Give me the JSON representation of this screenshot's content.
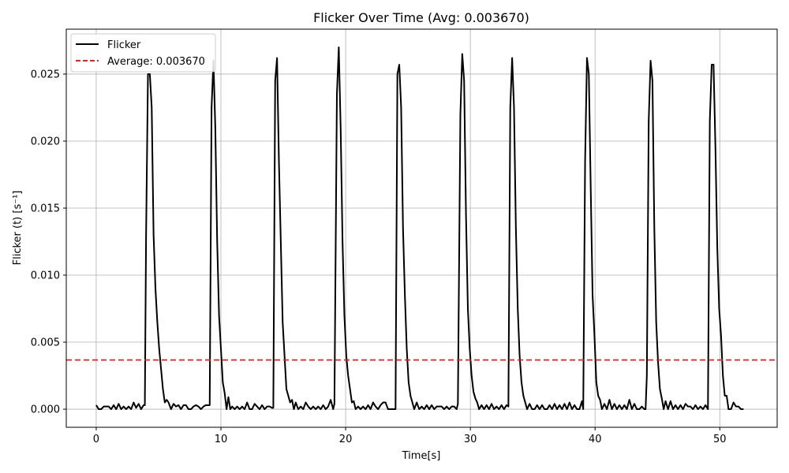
{
  "chart_data": {
    "type": "line",
    "title": "Flicker Over Time (Avg: 0.003670)",
    "xlabel": "Time[s]",
    "ylabel": "Flicker (t) [s⁻¹]",
    "xlim": [
      -2.4,
      54.6
    ],
    "ylim": [
      -0.00135,
      0.02835
    ],
    "xticks": [
      0,
      10,
      20,
      30,
      40,
      50
    ],
    "xtick_labels": [
      "0",
      "10",
      "20",
      "30",
      "40",
      "50"
    ],
    "yticks": [
      0.0,
      0.005,
      0.01,
      0.015,
      0.02,
      0.025
    ],
    "ytick_labels": [
      "0.000",
      "0.005",
      "0.010",
      "0.015",
      "0.020",
      "0.025"
    ],
    "grid": true,
    "legend_position": "top-left",
    "series": [
      {
        "name": "Flicker",
        "color": "#000000",
        "style": "solid",
        "points": [
          [
            0.0,
            0.0003
          ],
          [
            0.2,
            0.0
          ],
          [
            0.4,
            0.0
          ],
          [
            0.6,
            0.0002
          ],
          [
            0.8,
            0.0002
          ],
          [
            1.0,
            0.0002
          ],
          [
            1.2,
            0.0
          ],
          [
            1.4,
            0.0003
          ],
          [
            1.6,
            0.0
          ],
          [
            1.8,
            0.0004
          ],
          [
            2.0,
            0.0
          ],
          [
            2.2,
            0.0002
          ],
          [
            2.4,
            0.0
          ],
          [
            2.6,
            0.0002
          ],
          [
            2.8,
            0.0
          ],
          [
            3.0,
            0.0005
          ],
          [
            3.2,
            0.0001
          ],
          [
            3.4,
            0.0004
          ],
          [
            3.6,
            0.0
          ],
          [
            3.8,
            0.0003
          ],
          [
            3.9,
            0.0003
          ],
          [
            4.0,
            0.013
          ],
          [
            4.15,
            0.025
          ],
          [
            4.3,
            0.025
          ],
          [
            4.45,
            0.0225
          ],
          [
            4.6,
            0.013
          ],
          [
            4.75,
            0.009
          ],
          [
            4.9,
            0.0065
          ],
          [
            5.05,
            0.0045
          ],
          [
            5.2,
            0.003
          ],
          [
            5.35,
            0.0015
          ],
          [
            5.5,
            0.0005
          ],
          [
            5.65,
            0.0007
          ],
          [
            5.8,
            0.0005
          ],
          [
            6.0,
            0.0
          ],
          [
            6.2,
            0.0004
          ],
          [
            6.4,
            0.0002
          ],
          [
            6.6,
            0.0003
          ],
          [
            6.8,
            0.0
          ],
          [
            7.0,
            0.0003
          ],
          [
            7.2,
            0.0003
          ],
          [
            7.4,
            0.0
          ],
          [
            7.6,
            0.0
          ],
          [
            7.8,
            0.0002
          ],
          [
            8.0,
            0.0003
          ],
          [
            8.2,
            0.0002
          ],
          [
            8.4,
            0.0
          ],
          [
            8.6,
            0.0002
          ],
          [
            8.8,
            0.0003
          ],
          [
            9.0,
            0.0003
          ],
          [
            9.1,
            0.0003
          ],
          [
            9.25,
            0.0225
          ],
          [
            9.4,
            0.026
          ],
          [
            9.55,
            0.021
          ],
          [
            9.7,
            0.0125
          ],
          [
            9.85,
            0.007
          ],
          [
            10.0,
            0.0045
          ],
          [
            10.15,
            0.002
          ],
          [
            10.3,
            0.0012
          ],
          [
            10.45,
            0.0
          ],
          [
            10.6,
            0.0009
          ],
          [
            10.75,
            0.0
          ],
          [
            10.9,
            0.0002
          ],
          [
            11.1,
            0.0
          ],
          [
            11.3,
            0.0002
          ],
          [
            11.5,
            0.0
          ],
          [
            11.7,
            0.0002
          ],
          [
            11.9,
            0.0
          ],
          [
            12.1,
            0.0005
          ],
          [
            12.3,
            0.0
          ],
          [
            12.5,
            0.0
          ],
          [
            12.7,
            0.0004
          ],
          [
            12.9,
            0.0002
          ],
          [
            13.1,
            0.0
          ],
          [
            13.3,
            0.0003
          ],
          [
            13.5,
            0.0
          ],
          [
            13.7,
            0.0002
          ],
          [
            13.9,
            0.0002
          ],
          [
            14.1,
            0.0001
          ],
          [
            14.2,
            0.0001
          ],
          [
            14.35,
            0.0245
          ],
          [
            14.5,
            0.0262
          ],
          [
            14.65,
            0.0185
          ],
          [
            14.8,
            0.0125
          ],
          [
            14.95,
            0.0065
          ],
          [
            15.1,
            0.004
          ],
          [
            15.25,
            0.0015
          ],
          [
            15.4,
            0.001
          ],
          [
            15.55,
            0.0005
          ],
          [
            15.7,
            0.0007
          ],
          [
            15.85,
            0.0
          ],
          [
            16.0,
            0.0005
          ],
          [
            16.2,
            0.0
          ],
          [
            16.4,
            0.0002
          ],
          [
            16.6,
            0.0
          ],
          [
            16.8,
            0.0005
          ],
          [
            17.0,
            0.0002
          ],
          [
            17.2,
            0.0
          ],
          [
            17.4,
            0.0002
          ],
          [
            17.6,
            0.0
          ],
          [
            17.8,
            0.0002
          ],
          [
            18.0,
            0.0
          ],
          [
            18.2,
            0.0003
          ],
          [
            18.4,
            0.0
          ],
          [
            18.6,
            0.0002
          ],
          [
            18.8,
            0.0007
          ],
          [
            19.0,
            0.0
          ],
          [
            19.1,
            0.0004
          ],
          [
            19.3,
            0.0235
          ],
          [
            19.45,
            0.027
          ],
          [
            19.6,
            0.021
          ],
          [
            19.75,
            0.0125
          ],
          [
            19.9,
            0.007
          ],
          [
            20.05,
            0.004
          ],
          [
            20.2,
            0.0025
          ],
          [
            20.35,
            0.0015
          ],
          [
            20.5,
            0.0005
          ],
          [
            20.65,
            0.0006
          ],
          [
            20.8,
            0.0
          ],
          [
            21.0,
            0.0002
          ],
          [
            21.2,
            0.0
          ],
          [
            21.4,
            0.0002
          ],
          [
            21.6,
            0.0
          ],
          [
            21.8,
            0.0003
          ],
          [
            22.0,
            0.0
          ],
          [
            22.2,
            0.0005
          ],
          [
            22.4,
            0.0002
          ],
          [
            22.6,
            0.0
          ],
          [
            22.8,
            0.0003
          ],
          [
            23.0,
            0.0005
          ],
          [
            23.2,
            0.0005
          ],
          [
            23.4,
            0.0
          ],
          [
            23.6,
            0.0
          ],
          [
            23.8,
            0.0
          ],
          [
            24.0,
            0.0
          ],
          [
            24.15,
            0.025
          ],
          [
            24.3,
            0.0257
          ],
          [
            24.45,
            0.0225
          ],
          [
            24.6,
            0.0135
          ],
          [
            24.75,
            0.0085
          ],
          [
            24.9,
            0.0045
          ],
          [
            25.05,
            0.002
          ],
          [
            25.2,
            0.001
          ],
          [
            25.35,
            0.0005
          ],
          [
            25.5,
            0.0
          ],
          [
            25.7,
            0.0005
          ],
          [
            25.9,
            0.0
          ],
          [
            26.1,
            0.0002
          ],
          [
            26.3,
            0.0
          ],
          [
            26.5,
            0.0003
          ],
          [
            26.7,
            0.0
          ],
          [
            26.9,
            0.0003
          ],
          [
            27.1,
            0.0
          ],
          [
            27.3,
            0.0002
          ],
          [
            27.5,
            0.0002
          ],
          [
            27.7,
            0.0002
          ],
          [
            27.9,
            0.0
          ],
          [
            28.1,
            0.0002
          ],
          [
            28.3,
            0.0
          ],
          [
            28.5,
            0.0002
          ],
          [
            28.7,
            0.0002
          ],
          [
            28.9,
            0.0
          ],
          [
            29.0,
            0.0004
          ],
          [
            29.2,
            0.022
          ],
          [
            29.35,
            0.0265
          ],
          [
            29.5,
            0.0245
          ],
          [
            29.65,
            0.0145
          ],
          [
            29.8,
            0.0075
          ],
          [
            29.95,
            0.0045
          ],
          [
            30.1,
            0.0025
          ],
          [
            30.25,
            0.0013
          ],
          [
            30.4,
            0.0008
          ],
          [
            30.55,
            0.0005
          ],
          [
            30.7,
            0.0
          ],
          [
            30.9,
            0.0003
          ],
          [
            31.1,
            0.0
          ],
          [
            31.3,
            0.0003
          ],
          [
            31.5,
            0.0
          ],
          [
            31.7,
            0.0004
          ],
          [
            31.9,
            0.0
          ],
          [
            32.1,
            0.0002
          ],
          [
            32.3,
            0.0
          ],
          [
            32.5,
            0.0003
          ],
          [
            32.7,
            0.0
          ],
          [
            32.9,
            0.0003
          ],
          [
            33.05,
            0.0002
          ],
          [
            33.2,
            0.0225
          ],
          [
            33.35,
            0.0262
          ],
          [
            33.5,
            0.0225
          ],
          [
            33.65,
            0.0135
          ],
          [
            33.8,
            0.0075
          ],
          [
            33.95,
            0.004
          ],
          [
            34.1,
            0.002
          ],
          [
            34.25,
            0.001
          ],
          [
            34.4,
            0.0005
          ],
          [
            34.55,
            0.0
          ],
          [
            34.75,
            0.0004
          ],
          [
            34.95,
            0.0
          ],
          [
            35.15,
            0.0
          ],
          [
            35.35,
            0.0003
          ],
          [
            35.55,
            0.0
          ],
          [
            35.75,
            0.0003
          ],
          [
            35.95,
            0.0
          ],
          [
            36.15,
            0.0
          ],
          [
            36.35,
            0.0003
          ],
          [
            36.55,
            0.0
          ],
          [
            36.75,
            0.0004
          ],
          [
            36.95,
            0.0
          ],
          [
            37.15,
            0.0003
          ],
          [
            37.35,
            0.0
          ],
          [
            37.55,
            0.0004
          ],
          [
            37.75,
            0.0
          ],
          [
            37.95,
            0.0005
          ],
          [
            38.15,
            0.0
          ],
          [
            38.35,
            0.0003
          ],
          [
            38.55,
            0.0
          ],
          [
            38.75,
            0.0
          ],
          [
            38.95,
            0.0006
          ],
          [
            39.05,
            0.0
          ],
          [
            39.2,
            0.0185
          ],
          [
            39.35,
            0.0262
          ],
          [
            39.5,
            0.025
          ],
          [
            39.65,
            0.0165
          ],
          [
            39.8,
            0.0085
          ],
          [
            39.95,
            0.0055
          ],
          [
            40.1,
            0.002
          ],
          [
            40.25,
            0.001
          ],
          [
            40.4,
            0.0007
          ],
          [
            40.55,
            0.0
          ],
          [
            40.75,
            0.0004
          ],
          [
            40.95,
            0.0
          ],
          [
            41.15,
            0.0007
          ],
          [
            41.35,
            0.0
          ],
          [
            41.55,
            0.0004
          ],
          [
            41.75,
            0.0
          ],
          [
            41.95,
            0.0003
          ],
          [
            42.15,
            0.0
          ],
          [
            42.35,
            0.0003
          ],
          [
            42.55,
            0.0
          ],
          [
            42.75,
            0.0007
          ],
          [
            42.95,
            0.0
          ],
          [
            43.15,
            0.0004
          ],
          [
            43.35,
            0.0
          ],
          [
            43.55,
            0.0
          ],
          [
            43.75,
            0.0002
          ],
          [
            43.95,
            0.0
          ],
          [
            44.05,
            0.0
          ],
          [
            44.15,
            0.0025
          ],
          [
            44.3,
            0.0215
          ],
          [
            44.45,
            0.026
          ],
          [
            44.6,
            0.0245
          ],
          [
            44.75,
            0.0135
          ],
          [
            44.9,
            0.0065
          ],
          [
            45.05,
            0.0035
          ],
          [
            45.2,
            0.0015
          ],
          [
            45.35,
            0.0008
          ],
          [
            45.5,
            0.0
          ],
          [
            45.65,
            0.0006
          ],
          [
            45.85,
            0.0
          ],
          [
            46.05,
            0.0006
          ],
          [
            46.25,
            0.0
          ],
          [
            46.45,
            0.0003
          ],
          [
            46.65,
            0.0
          ],
          [
            46.85,
            0.0003
          ],
          [
            47.05,
            0.0
          ],
          [
            47.25,
            0.0004
          ],
          [
            47.45,
            0.0002
          ],
          [
            47.65,
            0.0002
          ],
          [
            47.85,
            0.0
          ],
          [
            48.05,
            0.0003
          ],
          [
            48.25,
            0.0
          ],
          [
            48.45,
            0.0002
          ],
          [
            48.65,
            0.0
          ],
          [
            48.85,
            0.0003
          ],
          [
            49.05,
            0.0
          ],
          [
            49.2,
            0.0215
          ],
          [
            49.35,
            0.0257
          ],
          [
            49.5,
            0.0257
          ],
          [
            49.65,
            0.0195
          ],
          [
            49.8,
            0.012
          ],
          [
            49.95,
            0.0075
          ],
          [
            50.1,
            0.0055
          ],
          [
            50.25,
            0.0025
          ],
          [
            50.4,
            0.001
          ],
          [
            50.55,
            0.001
          ],
          [
            50.7,
            0.0
          ],
          [
            50.9,
            0.0
          ],
          [
            51.1,
            0.0005
          ],
          [
            51.3,
            0.0002
          ],
          [
            51.5,
            0.0002
          ],
          [
            51.7,
            0.0
          ],
          [
            51.9,
            0.0
          ]
        ]
      },
      {
        "name": "Average: 0.003670",
        "color": "#d62728",
        "style": "dashed",
        "value": 0.00367
      }
    ]
  }
}
